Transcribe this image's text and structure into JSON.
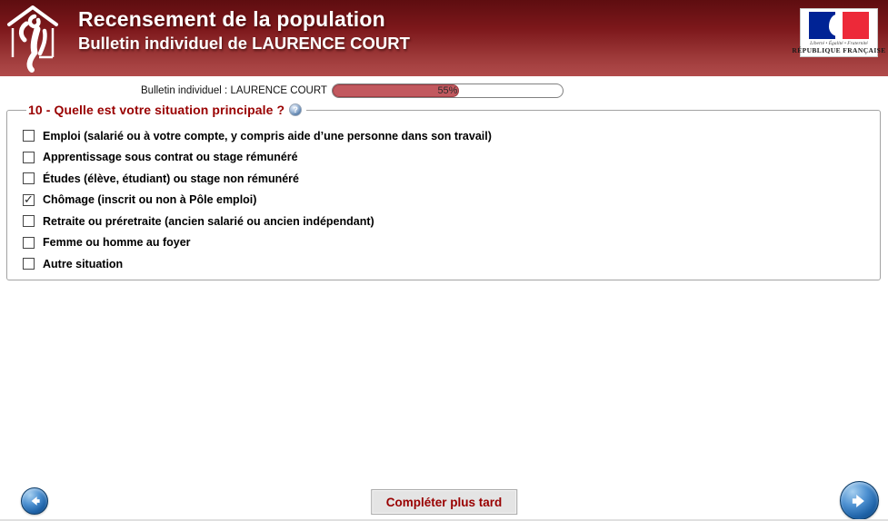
{
  "header": {
    "title": "Recensement de la population",
    "subtitle": "Bulletin individuel de LAURENCE COURT",
    "republic_logo": {
      "motto": "Liberté • Égalité • Fraternité",
      "name": "RÉPUBLIQUE FRANÇAISE",
      "flag_blue": "#002395",
      "flag_red": "#ED2939"
    },
    "colors": {
      "gradient_top": "#5e0d10",
      "gradient_bottom": "#b14b4b"
    }
  },
  "progress": {
    "label": "Bulletin individuel : LAURENCE COURT",
    "percent": 55,
    "percent_label": "55%",
    "fill_color": "#c2595f"
  },
  "question": {
    "title": "10 - Quelle est votre situation principale ?",
    "help_glyph": "?",
    "options": [
      {
        "label": "Emploi (salarié ou à votre compte, y compris aide d’une personne dans son travail)",
        "checked": false
      },
      {
        "label": "Apprentissage sous contrat ou stage rémunéré",
        "checked": false
      },
      {
        "label": "Études (élève, étudiant) ou stage non rémunéré",
        "checked": false
      },
      {
        "label": "Chômage (inscrit ou non à Pôle emploi)",
        "checked": true
      },
      {
        "label": "Retraite ou préretraite (ancien salarié ou ancien indépendant)",
        "checked": false
      },
      {
        "label": "Femme ou homme au foyer",
        "checked": false
      },
      {
        "label": "Autre situation",
        "checked": false
      }
    ]
  },
  "footer": {
    "save_later_label": "Compléter plus tard"
  }
}
